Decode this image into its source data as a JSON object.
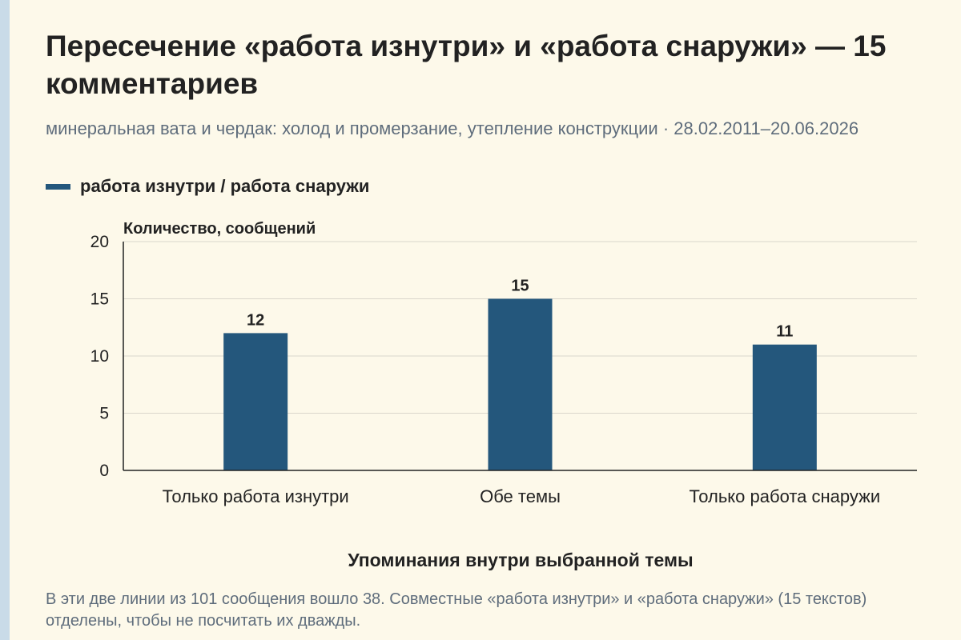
{
  "title": "Пересечение «работа изнутри» и «работа снаружи» — 15 комментариев",
  "subtitle": "минеральная вата и чердак: холод и промерзание, утепление конструкции · 28.02.2011–20.06.2026",
  "legend": {
    "label": "работа изнутри / работа снаружи"
  },
  "footnote": "В эти две линии из 101 сообщения вошло 38. Совместные «работа изнутри» и «работа снаружи» (15 текстов) отделены, чтобы не посчитать их дважды.",
  "colors": {
    "bar": "#24577c",
    "background": "#fdf9ea",
    "grid": "#d9d6cc",
    "axis": "#222222"
  },
  "chart_data": {
    "type": "bar",
    "title": "Пересечение «работа изнутри» и «работа снаружи» — 15 комментариев",
    "categories": [
      "Только работа изнутри",
      "Обе темы",
      "Только работа снаружи"
    ],
    "series": [
      {
        "name": "работа изнутри / работа снаружи",
        "values": [
          12,
          15,
          11
        ]
      }
    ],
    "ylabel": "Количество, сообщений",
    "xlabel": "Упоминания внутри выбранной темы",
    "ylim": [
      0,
      20
    ],
    "yticks": [
      0,
      5,
      10,
      15,
      20
    ],
    "grid": true,
    "legend": "top-left"
  }
}
